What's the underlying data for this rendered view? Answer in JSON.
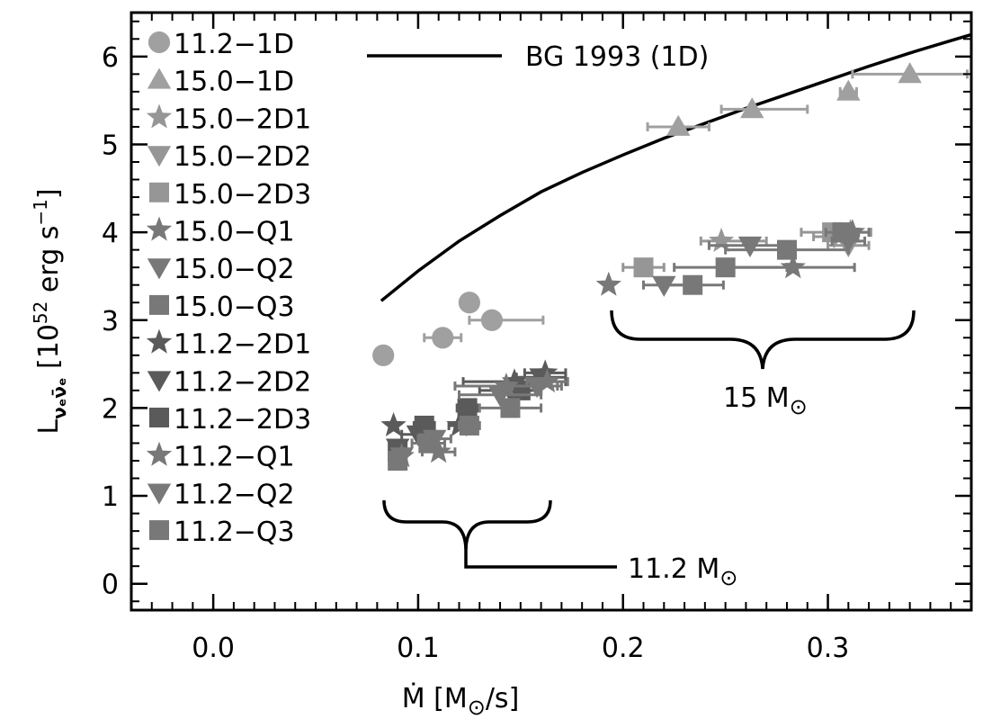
{
  "chart_data": {
    "type": "scatter",
    "xlim": [
      -0.04,
      0.37
    ],
    "ylim": [
      -0.3,
      6.5
    ],
    "x_ticks": [
      0.0,
      0.1,
      0.2,
      0.3
    ],
    "x_tick_labels": [
      "0.0",
      "0.1",
      "0.2",
      "0.3"
    ],
    "y_ticks": [
      0,
      1,
      2,
      3,
      4,
      5,
      6
    ],
    "y_tick_labels": [
      "0",
      "1",
      "2",
      "3",
      "4",
      "5",
      "6"
    ],
    "xlabel": {
      "main": "Ṁ [M",
      "sym": "⊙",
      "tail": "/s]"
    },
    "ylabel": {
      "main": "L",
      "sub": "νₑν̄ₑ",
      "mid": " [10",
      "sup": "52",
      "tail": " erg s",
      "sup2": "−1",
      "end": "]"
    },
    "legend_location": "upper-left",
    "curve": {
      "name": "BG 1993 (1D)",
      "x": [
        0.082,
        0.1,
        0.12,
        0.14,
        0.16,
        0.18,
        0.2,
        0.22,
        0.24,
        0.26,
        0.28,
        0.3,
        0.32,
        0.34,
        0.36,
        0.37
      ],
      "y": [
        3.22,
        3.56,
        3.9,
        4.19,
        4.46,
        4.68,
        4.88,
        5.07,
        5.24,
        5.41,
        5.57,
        5.73,
        5.89,
        6.04,
        6.18,
        6.25
      ]
    },
    "series": [
      {
        "name": "11.2−1D",
        "marker": "circle",
        "color": "#a0a0a0",
        "points": [
          [
            0.083,
            2.6,
            0,
            0
          ],
          [
            0.112,
            2.8,
            0.009,
            0.009
          ],
          [
            0.125,
            3.2,
            0,
            0
          ],
          [
            0.136,
            3.0,
            0.011,
            0.025
          ]
        ]
      },
      {
        "name": "15.0−1D",
        "marker": "triangle-up",
        "color": "#a0a0a0",
        "points": [
          [
            0.227,
            5.2,
            0.015,
            0.015
          ],
          [
            0.263,
            5.4,
            0.015,
            0.027
          ],
          [
            0.31,
            5.6,
            0.004,
            0.004
          ],
          [
            0.34,
            5.8,
            0.028,
            0.028
          ]
        ]
      },
      {
        "name": "15.0−2D1",
        "marker": "star",
        "color": "#969696",
        "points": [
          [
            0.248,
            3.9,
            0.01,
            0.022
          ],
          [
            0.311,
            4.0,
            0.01,
            0.01
          ]
        ]
      },
      {
        "name": "15.0−2D2",
        "marker": "triangle-down",
        "color": "#969696",
        "points": [
          [
            0.303,
            3.95,
            0.01,
            0.008
          ],
          [
            0.31,
            3.85,
            0.01,
            0.01
          ]
        ]
      },
      {
        "name": "15.0−2D3",
        "marker": "square",
        "color": "#969696",
        "points": [
          [
            0.21,
            3.6,
            0.01,
            0.01
          ],
          [
            0.302,
            4.0,
            0.015,
            0.008
          ]
        ]
      },
      {
        "name": "15.0−Q1",
        "marker": "star",
        "color": "#787878",
        "points": [
          [
            0.193,
            3.4,
            0,
            0
          ],
          [
            0.283,
            3.6,
            0.03,
            0.03
          ],
          [
            0.312,
            4.0,
            0.008,
            0.008
          ]
        ]
      },
      {
        "name": "15.0−Q2",
        "marker": "triangle-down",
        "color": "#787878",
        "points": [
          [
            0.22,
            3.4,
            0.01,
            0.01
          ],
          [
            0.262,
            3.85,
            0.02,
            0.02
          ],
          [
            0.31,
            3.9,
            0.008,
            0.008
          ]
        ]
      },
      {
        "name": "15.0−Q3",
        "marker": "square",
        "color": "#787878",
        "points": [
          [
            0.234,
            3.4,
            0.015,
            0.015
          ],
          [
            0.25,
            3.6,
            0.025,
            0.03
          ],
          [
            0.28,
            3.8,
            0.03,
            0.03
          ],
          [
            0.307,
            4.0,
            0.008,
            0.008
          ]
        ]
      },
      {
        "name": "11.2−2D1",
        "marker": "star",
        "color": "#5a5a5a",
        "points": [
          [
            0.088,
            1.8,
            0,
            0
          ],
          [
            0.12,
            1.8,
            0.005,
            0.005
          ],
          [
            0.147,
            2.3,
            0.025,
            0.025
          ],
          [
            0.162,
            2.4,
            0.01,
            0.01
          ]
        ]
      },
      {
        "name": "11.2−2D2",
        "marker": "triangle-down",
        "color": "#5a5a5a",
        "points": [
          [
            0.09,
            1.55,
            0,
            0
          ],
          [
            0.1,
            1.7,
            0.008,
            0.008
          ],
          [
            0.145,
            2.2,
            0.015,
            0.015
          ],
          [
            0.16,
            2.35,
            0.012,
            0.012
          ]
        ]
      },
      {
        "name": "11.2−2D3",
        "marker": "square",
        "color": "#5a5a5a",
        "points": [
          [
            0.09,
            1.5,
            0,
            0
          ],
          [
            0.103,
            1.8,
            0.005,
            0.005
          ],
          [
            0.124,
            2.0,
            0.005,
            0.005
          ],
          [
            0.15,
            2.2,
            0.01,
            0.01
          ]
        ]
      },
      {
        "name": "11.2−Q1",
        "marker": "star",
        "color": "#787878",
        "points": [
          [
            0.092,
            1.45,
            0,
            0
          ],
          [
            0.11,
            1.5,
            0.008,
            0.008
          ],
          [
            0.143,
            2.25,
            0.025,
            0.025
          ],
          [
            0.163,
            2.3,
            0.01,
            0.01
          ]
        ]
      },
      {
        "name": "11.2−Q2",
        "marker": "triangle-down",
        "color": "#787878",
        "points": [
          [
            0.092,
            1.45,
            0,
            0
          ],
          [
            0.108,
            1.65,
            0.008,
            0.008
          ],
          [
            0.14,
            2.15,
            0.02,
            0.02
          ],
          [
            0.158,
            2.25,
            0.012,
            0.012
          ]
        ]
      },
      {
        "name": "11.2−Q3",
        "marker": "square",
        "color": "#787878",
        "points": [
          [
            0.09,
            1.4,
            0,
            0
          ],
          [
            0.105,
            1.6,
            0.008,
            0.008
          ],
          [
            0.125,
            1.8,
            0.005,
            0.005
          ],
          [
            0.145,
            2.0,
            0.015,
            0.015
          ]
        ]
      }
    ],
    "annotations": [
      {
        "text": "15 M",
        "sym": "⊙"
      },
      {
        "text": "11.2 M",
        "sym": "⊙"
      }
    ]
  }
}
